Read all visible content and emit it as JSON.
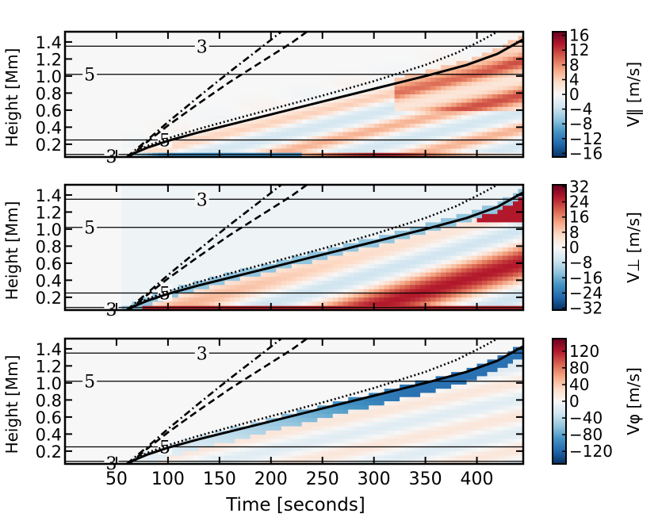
{
  "chart_data": {
    "type": "heatmap",
    "xlabel": "Time [seconds]",
    "xlim": [
      0,
      445
    ],
    "xticks": [
      "50",
      "100",
      "150",
      "200",
      "250",
      "300",
      "350",
      "400"
    ],
    "xtick_values": [
      50,
      100,
      150,
      200,
      250,
      300,
      350,
      400
    ],
    "panels": [
      {
        "id": "v-parallel",
        "ylabel": "Height [Mm]",
        "ylim": [
          0.05,
          1.52
        ],
        "yticks": [
          "0.2",
          "0.4",
          "0.6",
          "0.8",
          "1.0",
          "1.2",
          "1.4"
        ],
        "ytick_values": [
          0.2,
          0.4,
          0.6,
          0.8,
          1.0,
          1.2,
          1.4
        ],
        "colorbar_label": "V‖ [m/s]",
        "colorbar_ticks": [
          "16",
          "12",
          "8",
          "4",
          "0",
          "−4",
          "−8",
          "−12",
          "−16"
        ],
        "colorbar_tick_values": [
          16,
          12,
          8,
          4,
          0,
          -4,
          -8,
          -12,
          -16
        ],
        "clim": [
          -17,
          17
        ],
        "colormap": "RdBu_r",
        "hlines": [
          0.08,
          0.25,
          1.02,
          1.35
        ],
        "contour_labels": [
          {
            "text": "3",
            "x": 133,
            "y": 1.35
          },
          {
            "text": "5",
            "x": 24,
            "y": 1.02
          },
          {
            "text": "5",
            "x": 97,
            "y": 0.25
          },
          {
            "text": "3",
            "x": 45,
            "y": 0.06
          }
        ]
      },
      {
        "id": "v-perp",
        "ylabel": "Height [Mm]",
        "ylim": [
          0.05,
          1.52
        ],
        "yticks": [
          "0.2",
          "0.4",
          "0.6",
          "0.8",
          "1.0",
          "1.2",
          "1.4"
        ],
        "ytick_values": [
          0.2,
          0.4,
          0.6,
          0.8,
          1.0,
          1.2,
          1.4
        ],
        "colorbar_label": "V⊥ [m/s]",
        "colorbar_ticks": [
          "32",
          "24",
          "16",
          "8",
          "0",
          "−8",
          "−16",
          "−24",
          "−32"
        ],
        "colorbar_tick_values": [
          32,
          24,
          16,
          8,
          0,
          -8,
          -16,
          -24,
          -32
        ],
        "clim": [
          -33,
          33
        ],
        "colormap": "RdBu_r",
        "hlines": [
          0.08,
          0.25,
          1.02,
          1.35
        ],
        "contour_labels": [
          {
            "text": "3",
            "x": 133,
            "y": 1.35
          },
          {
            "text": "5",
            "x": 24,
            "y": 1.02
          },
          {
            "text": "5",
            "x": 97,
            "y": 0.25
          },
          {
            "text": "3",
            "x": 45,
            "y": 0.06
          }
        ]
      },
      {
        "id": "v-phi",
        "ylabel": "Height [Mm]",
        "ylim": [
          0.05,
          1.52
        ],
        "yticks": [
          "0.2",
          "0.4",
          "0.6",
          "0.8",
          "1.0",
          "1.2",
          "1.4"
        ],
        "ytick_values": [
          0.2,
          0.4,
          0.6,
          0.8,
          1.0,
          1.2,
          1.4
        ],
        "colorbar_label": "Vφ [m/s]",
        "colorbar_ticks": [
          "120",
          "80",
          "40",
          "0",
          "−40",
          "−80",
          "−120"
        ],
        "colorbar_tick_values": [
          120,
          80,
          40,
          0,
          -40,
          -80,
          -120
        ],
        "clim": [
          -150,
          150
        ],
        "colormap": "RdBu_r",
        "hlines": [
          0.08,
          0.25,
          1.02,
          1.35
        ],
        "contour_labels": [
          {
            "text": "3",
            "x": 133,
            "y": 1.35
          },
          {
            "text": "5",
            "x": 24,
            "y": 1.02
          },
          {
            "text": "5",
            "x": 97,
            "y": 0.25
          },
          {
            "text": "3",
            "x": 45,
            "y": 0.06
          }
        ]
      }
    ],
    "curves": [
      {
        "style": "solid",
        "x": [
          60,
          70,
          80,
          100,
          130,
          160,
          200,
          250,
          300,
          350,
          390,
          420,
          445
        ],
        "y": [
          0.05,
          0.11,
          0.16,
          0.24,
          0.34,
          0.43,
          0.55,
          0.7,
          0.85,
          1.0,
          1.13,
          1.26,
          1.43
        ]
      },
      {
        "style": "dotted",
        "x": [
          60,
          70,
          80,
          100,
          130,
          160,
          200,
          250,
          300,
          350,
          380,
          405,
          420
        ],
        "y": [
          0.05,
          0.12,
          0.18,
          0.27,
          0.38,
          0.48,
          0.61,
          0.77,
          0.94,
          1.13,
          1.27,
          1.42,
          1.52
        ]
      },
      {
        "style": "dashed",
        "x": [
          62,
          80,
          100,
          130,
          160,
          190,
          220,
          235
        ],
        "y": [
          0.05,
          0.23,
          0.42,
          0.68,
          0.93,
          1.16,
          1.39,
          1.52
        ]
      },
      {
        "style": "dashdot",
        "x": [
          60,
          80,
          100,
          130,
          160,
          190,
          210
        ],
        "y": [
          0.05,
          0.25,
          0.46,
          0.76,
          1.05,
          1.33,
          1.52
        ]
      }
    ]
  }
}
